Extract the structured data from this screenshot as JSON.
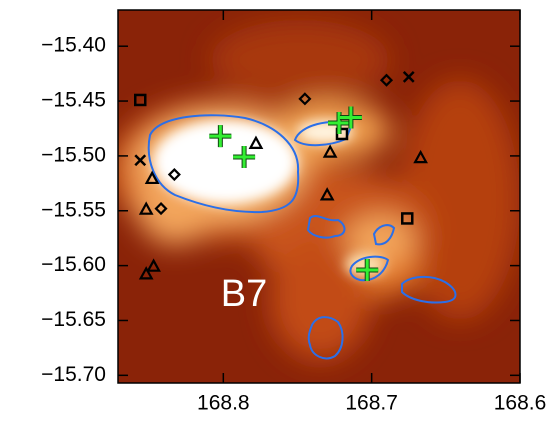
{
  "chart_data": {
    "type": "scatter",
    "annotations": [
      "B7"
    ],
    "xlim": [
      168.871,
      168.6
    ],
    "ylim": [
      -15.707,
      -15.367
    ],
    "xticks": [
      168.8,
      168.7,
      168.6
    ],
    "yticks": [
      {
        "value": -15.4,
        "label": "−15.40"
      },
      {
        "value": -15.45,
        "label": "−15.45"
      },
      {
        "value": -15.5,
        "label": "−15.50"
      },
      {
        "value": -15.55,
        "label": "−15.55"
      },
      {
        "value": -15.6,
        "label": "−15.60"
      },
      {
        "value": -15.65,
        "label": "−15.65"
      },
      {
        "value": -15.7,
        "label": "−15.70"
      }
    ],
    "series": [
      {
        "marker": "square",
        "color": "#000000",
        "x": [
          168.856,
          168.72,
          168.676
        ],
        "values": [
          -15.449,
          -15.48,
          -15.557
        ]
      },
      {
        "marker": "diamond",
        "color": "#000000",
        "x": [
          168.745,
          168.69,
          168.833,
          168.842
        ],
        "values": [
          -15.448,
          -15.431,
          -15.517,
          -15.548
        ]
      },
      {
        "marker": "triangle",
        "color": "#000000",
        "x": [
          168.778,
          168.728,
          168.667,
          168.73,
          168.848,
          168.852,
          168.847,
          168.852
        ],
        "values": [
          -15.489,
          -15.497,
          -15.502,
          -15.536,
          -15.521,
          -15.549,
          -15.601,
          -15.608
        ]
      },
      {
        "marker": "cross",
        "color": "#000000",
        "x": [
          168.856,
          168.675
        ],
        "values": [
          -15.504,
          -15.428
        ]
      },
      {
        "marker": "plus",
        "color": "#33ee33",
        "x": [
          168.802,
          168.786,
          168.722,
          168.714,
          168.703
        ],
        "values": [
          -15.482,
          -15.501,
          -15.47,
          -15.465,
          -15.604
        ]
      }
    ]
  }
}
